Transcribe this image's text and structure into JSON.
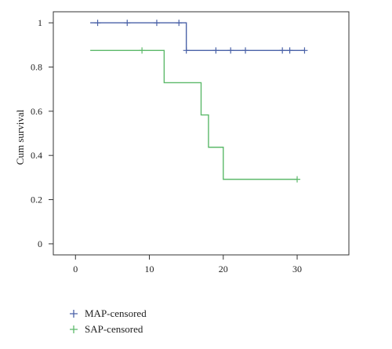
{
  "chart_data": {
    "type": "line",
    "subtype": "kaplan-meier step curve",
    "title": "",
    "xlabel": "",
    "ylabel": "Cum survival",
    "xlim": [
      -3,
      37
    ],
    "ylim": [
      -0.05,
      1.05
    ],
    "x_ticks": [
      0,
      10,
      20,
      30
    ],
    "y_ticks": [
      0,
      0.2,
      0.4,
      0.6,
      0.8,
      1
    ],
    "x_tick_labels": [
      "0",
      "10",
      "20",
      "30"
    ],
    "y_tick_labels": [
      "0",
      "0.2",
      "0.4",
      "0.6",
      "0.8",
      "1"
    ],
    "grid": false,
    "legend_position": "bottom-left",
    "series": [
      {
        "key": "map",
        "legend_label": "MAP-censored",
        "color": "#4a62a8",
        "steps": [
          [
            2,
            1
          ],
          [
            15,
            0.875
          ],
          [
            31,
            0.875
          ]
        ],
        "censored": [
          [
            3,
            1
          ],
          [
            7,
            1
          ],
          [
            11,
            1
          ],
          [
            14,
            1
          ],
          [
            15,
            0.875
          ],
          [
            19,
            0.875
          ],
          [
            21,
            0.875
          ],
          [
            23,
            0.875
          ],
          [
            28,
            0.875
          ],
          [
            29,
            0.875
          ],
          [
            31,
            0.875
          ]
        ]
      },
      {
        "key": "sap",
        "legend_label": "SAP-censored",
        "color": "#5cb96a",
        "steps": [
          [
            2,
            0.875
          ],
          [
            12,
            0.729
          ],
          [
            17,
            0.583
          ],
          [
            18,
            0.437
          ],
          [
            20,
            0.292
          ],
          [
            30,
            0.292
          ]
        ],
        "censored": [
          [
            9,
            0.875
          ],
          [
            30,
            0.292
          ]
        ]
      }
    ]
  }
}
